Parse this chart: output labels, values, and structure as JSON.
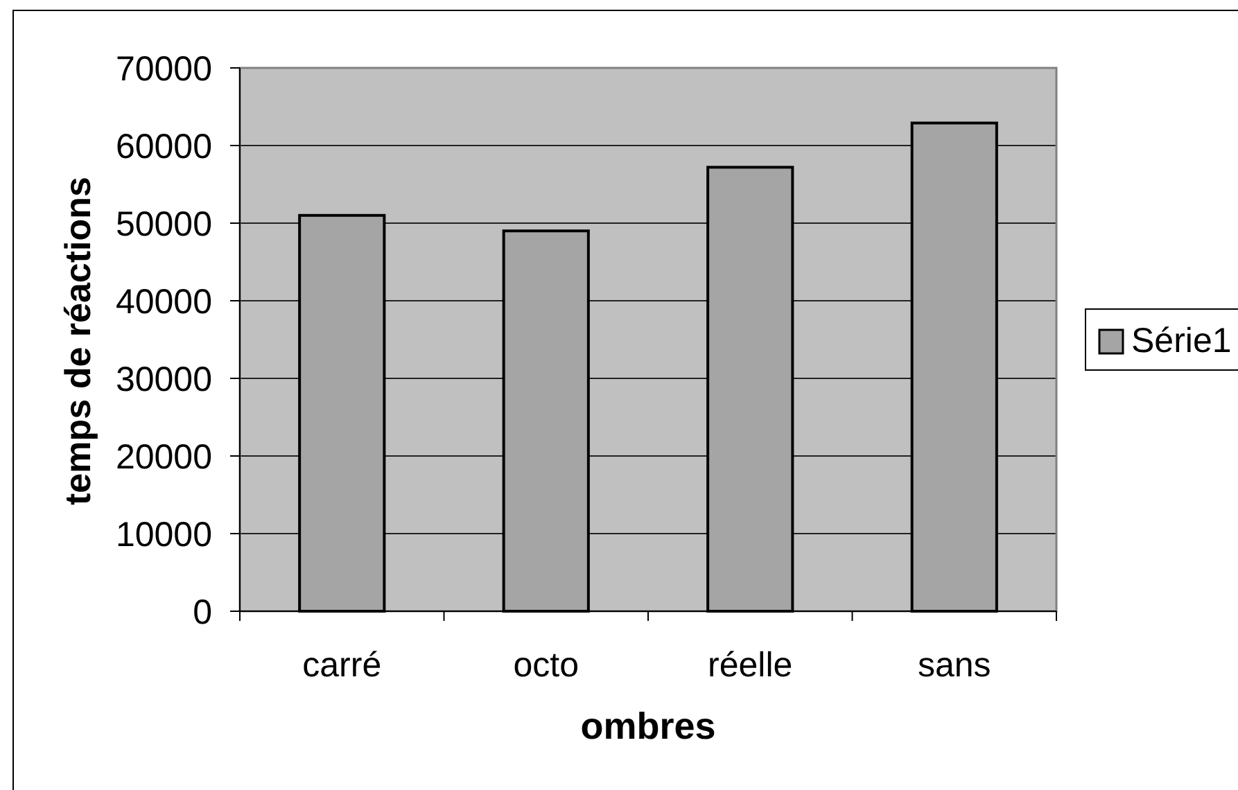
{
  "chart_data": {
    "type": "bar",
    "xlabel": "ombres",
    "ylabel": "temps de réactions",
    "categories": [
      "carré",
      "octo",
      "réelle",
      "sans"
    ],
    "series": [
      {
        "name": "Série1",
        "color": "#a5a5a5",
        "values": [
          51000,
          49000,
          57200,
          62900
        ]
      }
    ],
    "ylim": [
      0,
      70000
    ],
    "yticks": [
      0,
      10000,
      20000,
      30000,
      40000,
      50000,
      60000,
      70000
    ],
    "grid": "y",
    "legend": "right"
  }
}
